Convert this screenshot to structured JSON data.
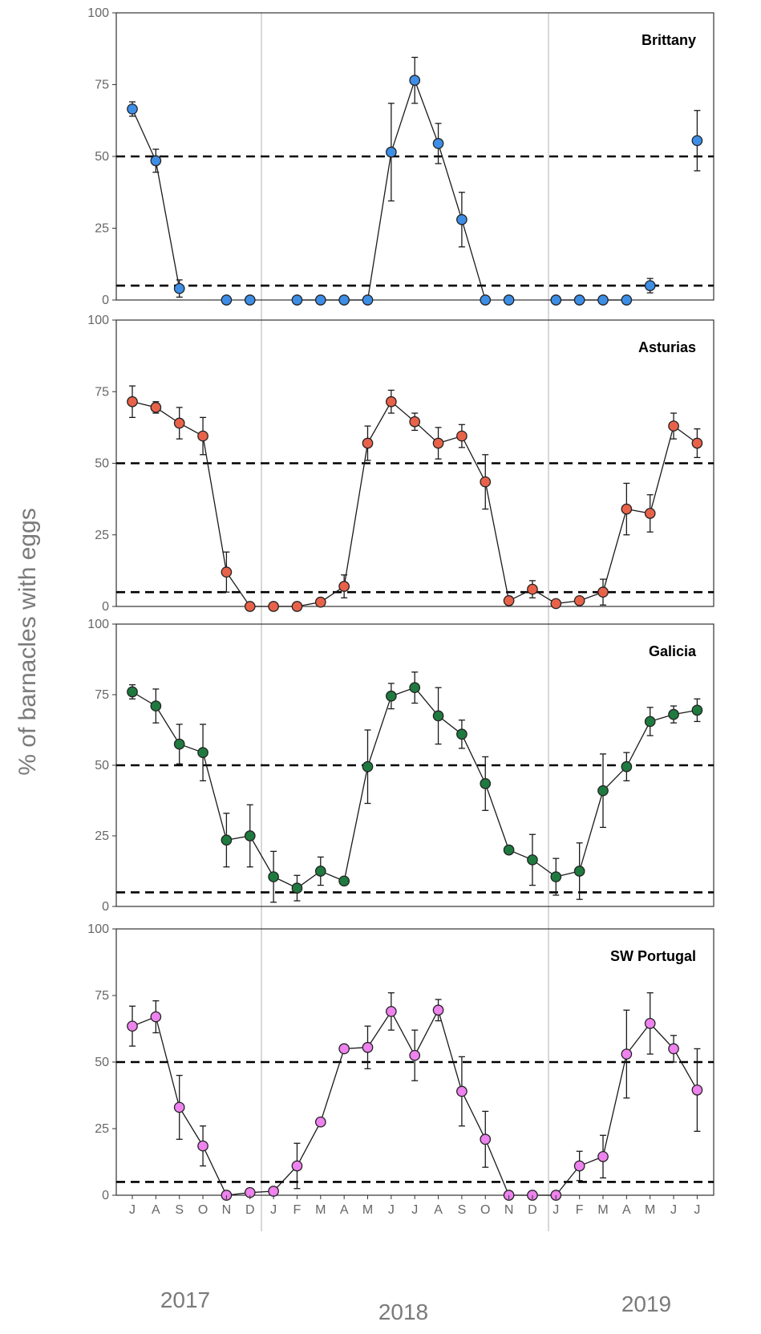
{
  "chart_data": {
    "type": "line",
    "ylabel": "% of barnacles with eggs",
    "ylim": [
      0,
      100
    ],
    "yticks": [
      0,
      25,
      50,
      75,
      100
    ],
    "reference_lines": [
      5,
      50
    ],
    "months": [
      "J",
      "A",
      "S",
      "O",
      "N",
      "D",
      "J",
      "F",
      "M",
      "A",
      "M",
      "J",
      "J",
      "A",
      "S",
      "O",
      "N",
      "D",
      "J",
      "F",
      "M",
      "A",
      "M",
      "J",
      "J"
    ],
    "years": [
      {
        "label": "2017"
      },
      {
        "label": "2018"
      },
      {
        "label": "2019"
      }
    ],
    "panels": [
      {
        "name": "Brittany",
        "color": "#3d8ee6",
        "values": [
          66.5,
          48.5,
          4.0,
          null,
          0,
          0,
          null,
          0,
          0,
          0,
          0,
          51.5,
          76.5,
          54.5,
          28.0,
          0,
          0,
          null,
          0,
          0,
          0,
          0,
          5.0,
          null,
          55.5
        ],
        "err_low": [
          2.5,
          4,
          3,
          null,
          0,
          0,
          null,
          0,
          0,
          0,
          0,
          17,
          8,
          7,
          9.5,
          0,
          0,
          null,
          0,
          0,
          0,
          0,
          2.5,
          null,
          10.5
        ],
        "err_high": [
          2.5,
          4,
          3,
          null,
          0,
          0,
          null,
          0,
          0,
          0,
          0,
          17,
          8,
          7,
          9.5,
          0,
          0,
          null,
          0,
          0,
          0,
          0,
          2.5,
          null,
          10.5
        ],
        "connected": [
          [
            0,
            2
          ],
          [
            7,
            15
          ],
          [
            18,
            21
          ]
        ]
      },
      {
        "name": "Asturias",
        "color": "#e8624a",
        "values": [
          71.5,
          69.5,
          64.0,
          59.5,
          12.0,
          0,
          0,
          0,
          1.5,
          7.0,
          57.0,
          71.5,
          64.5,
          57.0,
          59.5,
          43.5,
          2.0,
          6.0,
          1.0,
          2.0,
          5.0,
          34.0,
          32.5,
          63.0,
          57.0
        ],
        "err_low": [
          5.5,
          2,
          5.5,
          6.5,
          7,
          0,
          0,
          0,
          1,
          4,
          6,
          4,
          3,
          5.5,
          4,
          9.5,
          1.5,
          3,
          1,
          1,
          4.5,
          9,
          6.5,
          4.5,
          5
        ],
        "err_high": [
          5.5,
          2,
          5.5,
          6.5,
          7,
          0,
          0,
          0,
          1,
          4,
          6,
          4,
          3,
          5.5,
          4,
          9.5,
          1.5,
          3,
          1,
          1,
          4.5,
          9,
          6.5,
          4.5,
          5
        ],
        "connected": [
          [
            0,
            24
          ]
        ]
      },
      {
        "name": "Galicia",
        "color": "#1f7a3f",
        "values": [
          76.0,
          71.0,
          57.5,
          54.5,
          23.5,
          25.0,
          10.5,
          6.5,
          12.5,
          9.0,
          49.5,
          74.5,
          77.5,
          67.5,
          61.0,
          43.5,
          20.0,
          16.5,
          10.5,
          12.5,
          41.0,
          49.5,
          65.5,
          68.0,
          69.5
        ],
        "err_low": [
          2.5,
          6,
          7,
          10,
          9.5,
          11,
          9,
          4.5,
          5,
          1,
          13,
          4.5,
          5.5,
          10,
          5,
          9.5,
          1,
          9,
          6.5,
          10,
          13,
          5,
          5,
          3,
          4
        ],
        "err_high": [
          2.5,
          6,
          7,
          10,
          9.5,
          11,
          9,
          4.5,
          5,
          1,
          13,
          4.5,
          5.5,
          10,
          5,
          9.5,
          1,
          9,
          6.5,
          10,
          13,
          5,
          5,
          3,
          4
        ],
        "connected": [
          [
            0,
            24
          ]
        ]
      },
      {
        "name": "SW Portugal",
        "color": "#ee82ee",
        "values": [
          63.5,
          67.0,
          33.0,
          18.5,
          0,
          1.0,
          1.5,
          11.0,
          27.5,
          55.0,
          55.5,
          69.0,
          52.5,
          69.5,
          39.0,
          21.0,
          0,
          0,
          0,
          11.0,
          14.5,
          53.0,
          64.5,
          55.0,
          39.5
        ],
        "err_low": [
          7.5,
          6,
          12,
          7.5,
          0,
          1,
          1,
          8.5,
          1,
          1,
          8,
          7,
          9.5,
          4,
          13,
          10.5,
          0,
          0,
          0,
          5.5,
          8,
          16.5,
          11.5,
          5,
          15.5
        ],
        "err_high": [
          7.5,
          6,
          12,
          7.5,
          0,
          1,
          1,
          8.5,
          1,
          1,
          8,
          7,
          9.5,
          4,
          13,
          10.5,
          0,
          0,
          0,
          5.5,
          8,
          16.5,
          11.5,
          5,
          15.5
        ],
        "connected": [
          [
            0,
            24
          ]
        ]
      }
    ]
  }
}
